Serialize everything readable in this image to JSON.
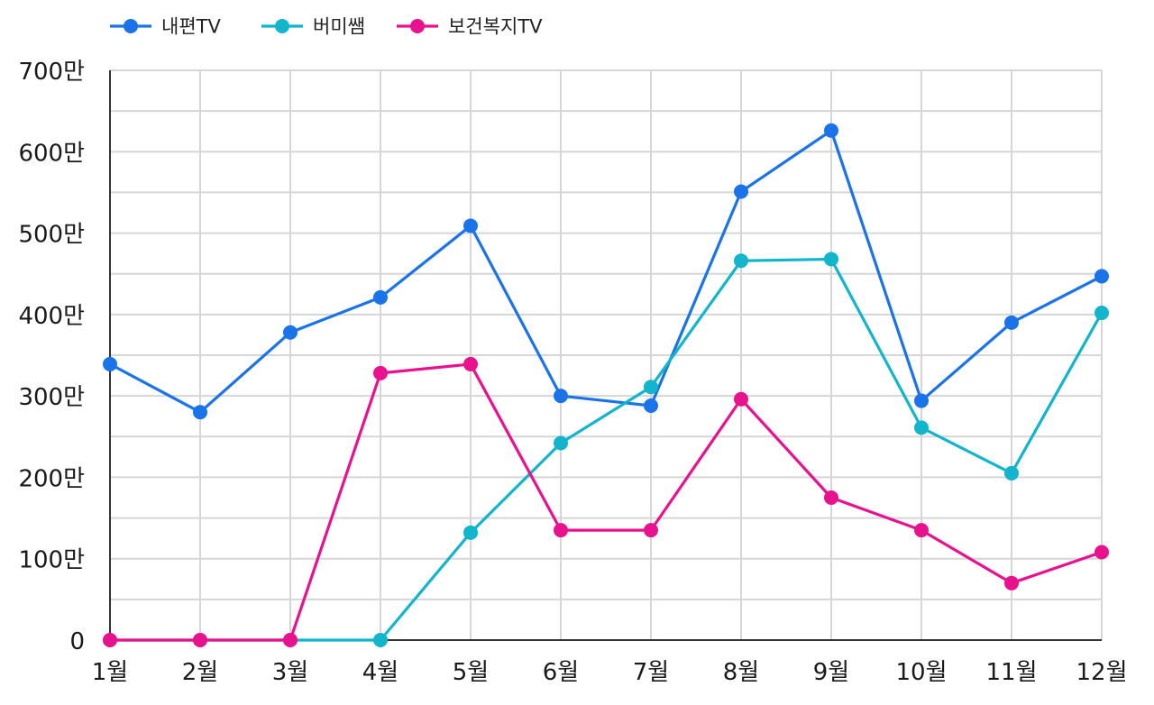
{
  "chart_data": {
    "type": "line",
    "title": "",
    "xlabel": "",
    "ylabel": "",
    "categories": [
      "1월",
      "2월",
      "3월",
      "4월",
      "5월",
      "6월",
      "7월",
      "8월",
      "9월",
      "10월",
      "11월",
      "12월"
    ],
    "y_ticks": [
      0,
      100,
      200,
      300,
      400,
      500,
      600,
      700
    ],
    "y_tick_labels": [
      "0",
      "100만",
      "200만",
      "300만",
      "400만",
      "500만",
      "600만",
      "700만"
    ],
    "ylim": [
      0,
      700
    ],
    "y_unit": "만",
    "grid": true,
    "legend_position": "top-left",
    "series": [
      {
        "name": "내편TV",
        "color": "#1a73e8",
        "values": [
          339,
          280,
          378,
          421,
          509,
          300,
          288,
          551,
          626,
          294,
          390,
          447
        ]
      },
      {
        "name": "버미쌤",
        "color": "#12b5cb",
        "values": [
          0,
          0,
          0,
          0,
          132,
          242,
          311,
          466,
          468,
          261,
          205,
          402
        ]
      },
      {
        "name": "보건복지TV",
        "color": "#e8128f",
        "values": [
          0,
          0,
          0,
          328,
          339,
          135,
          135,
          296,
          175,
          135,
          70,
          108
        ]
      }
    ]
  }
}
